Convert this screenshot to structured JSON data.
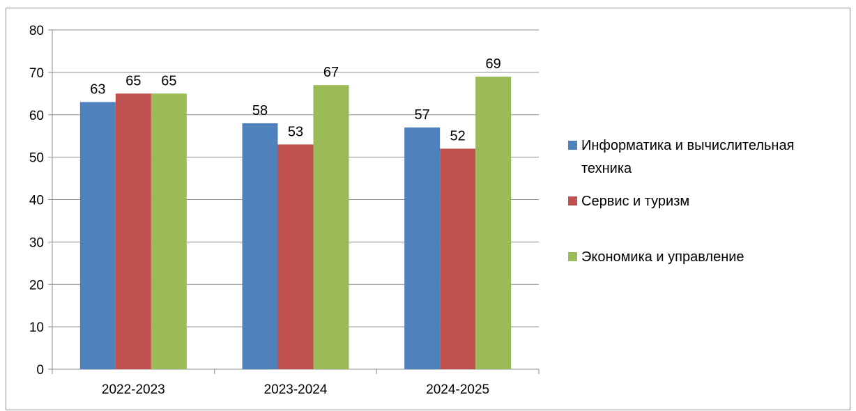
{
  "chart_data": {
    "type": "bar",
    "categories": [
      "2022-2023",
      "2023-2024",
      "2024-2025"
    ],
    "series": [
      {
        "name": "Информатика и вычислительная техника",
        "values": [
          63,
          58,
          57
        ],
        "color": "#4f81bd"
      },
      {
        "name": "Сервис и туризм",
        "values": [
          65,
          53,
          52
        ],
        "color": "#c0504d"
      },
      {
        "name": "Экономика и управление",
        "values": [
          65,
          67,
          69
        ],
        "color": "#9bbb59"
      }
    ],
    "ylim": [
      0,
      80
    ],
    "yticks": [
      0,
      10,
      20,
      30,
      40,
      50,
      60,
      70,
      80
    ],
    "grid": true,
    "legend_position": "right",
    "legend_lines": [
      [
        "Информатика и вычислительная",
        "техника"
      ],
      [
        "Сервис и туризм"
      ],
      [
        "Экономика и управление"
      ]
    ],
    "data_labels": true
  }
}
